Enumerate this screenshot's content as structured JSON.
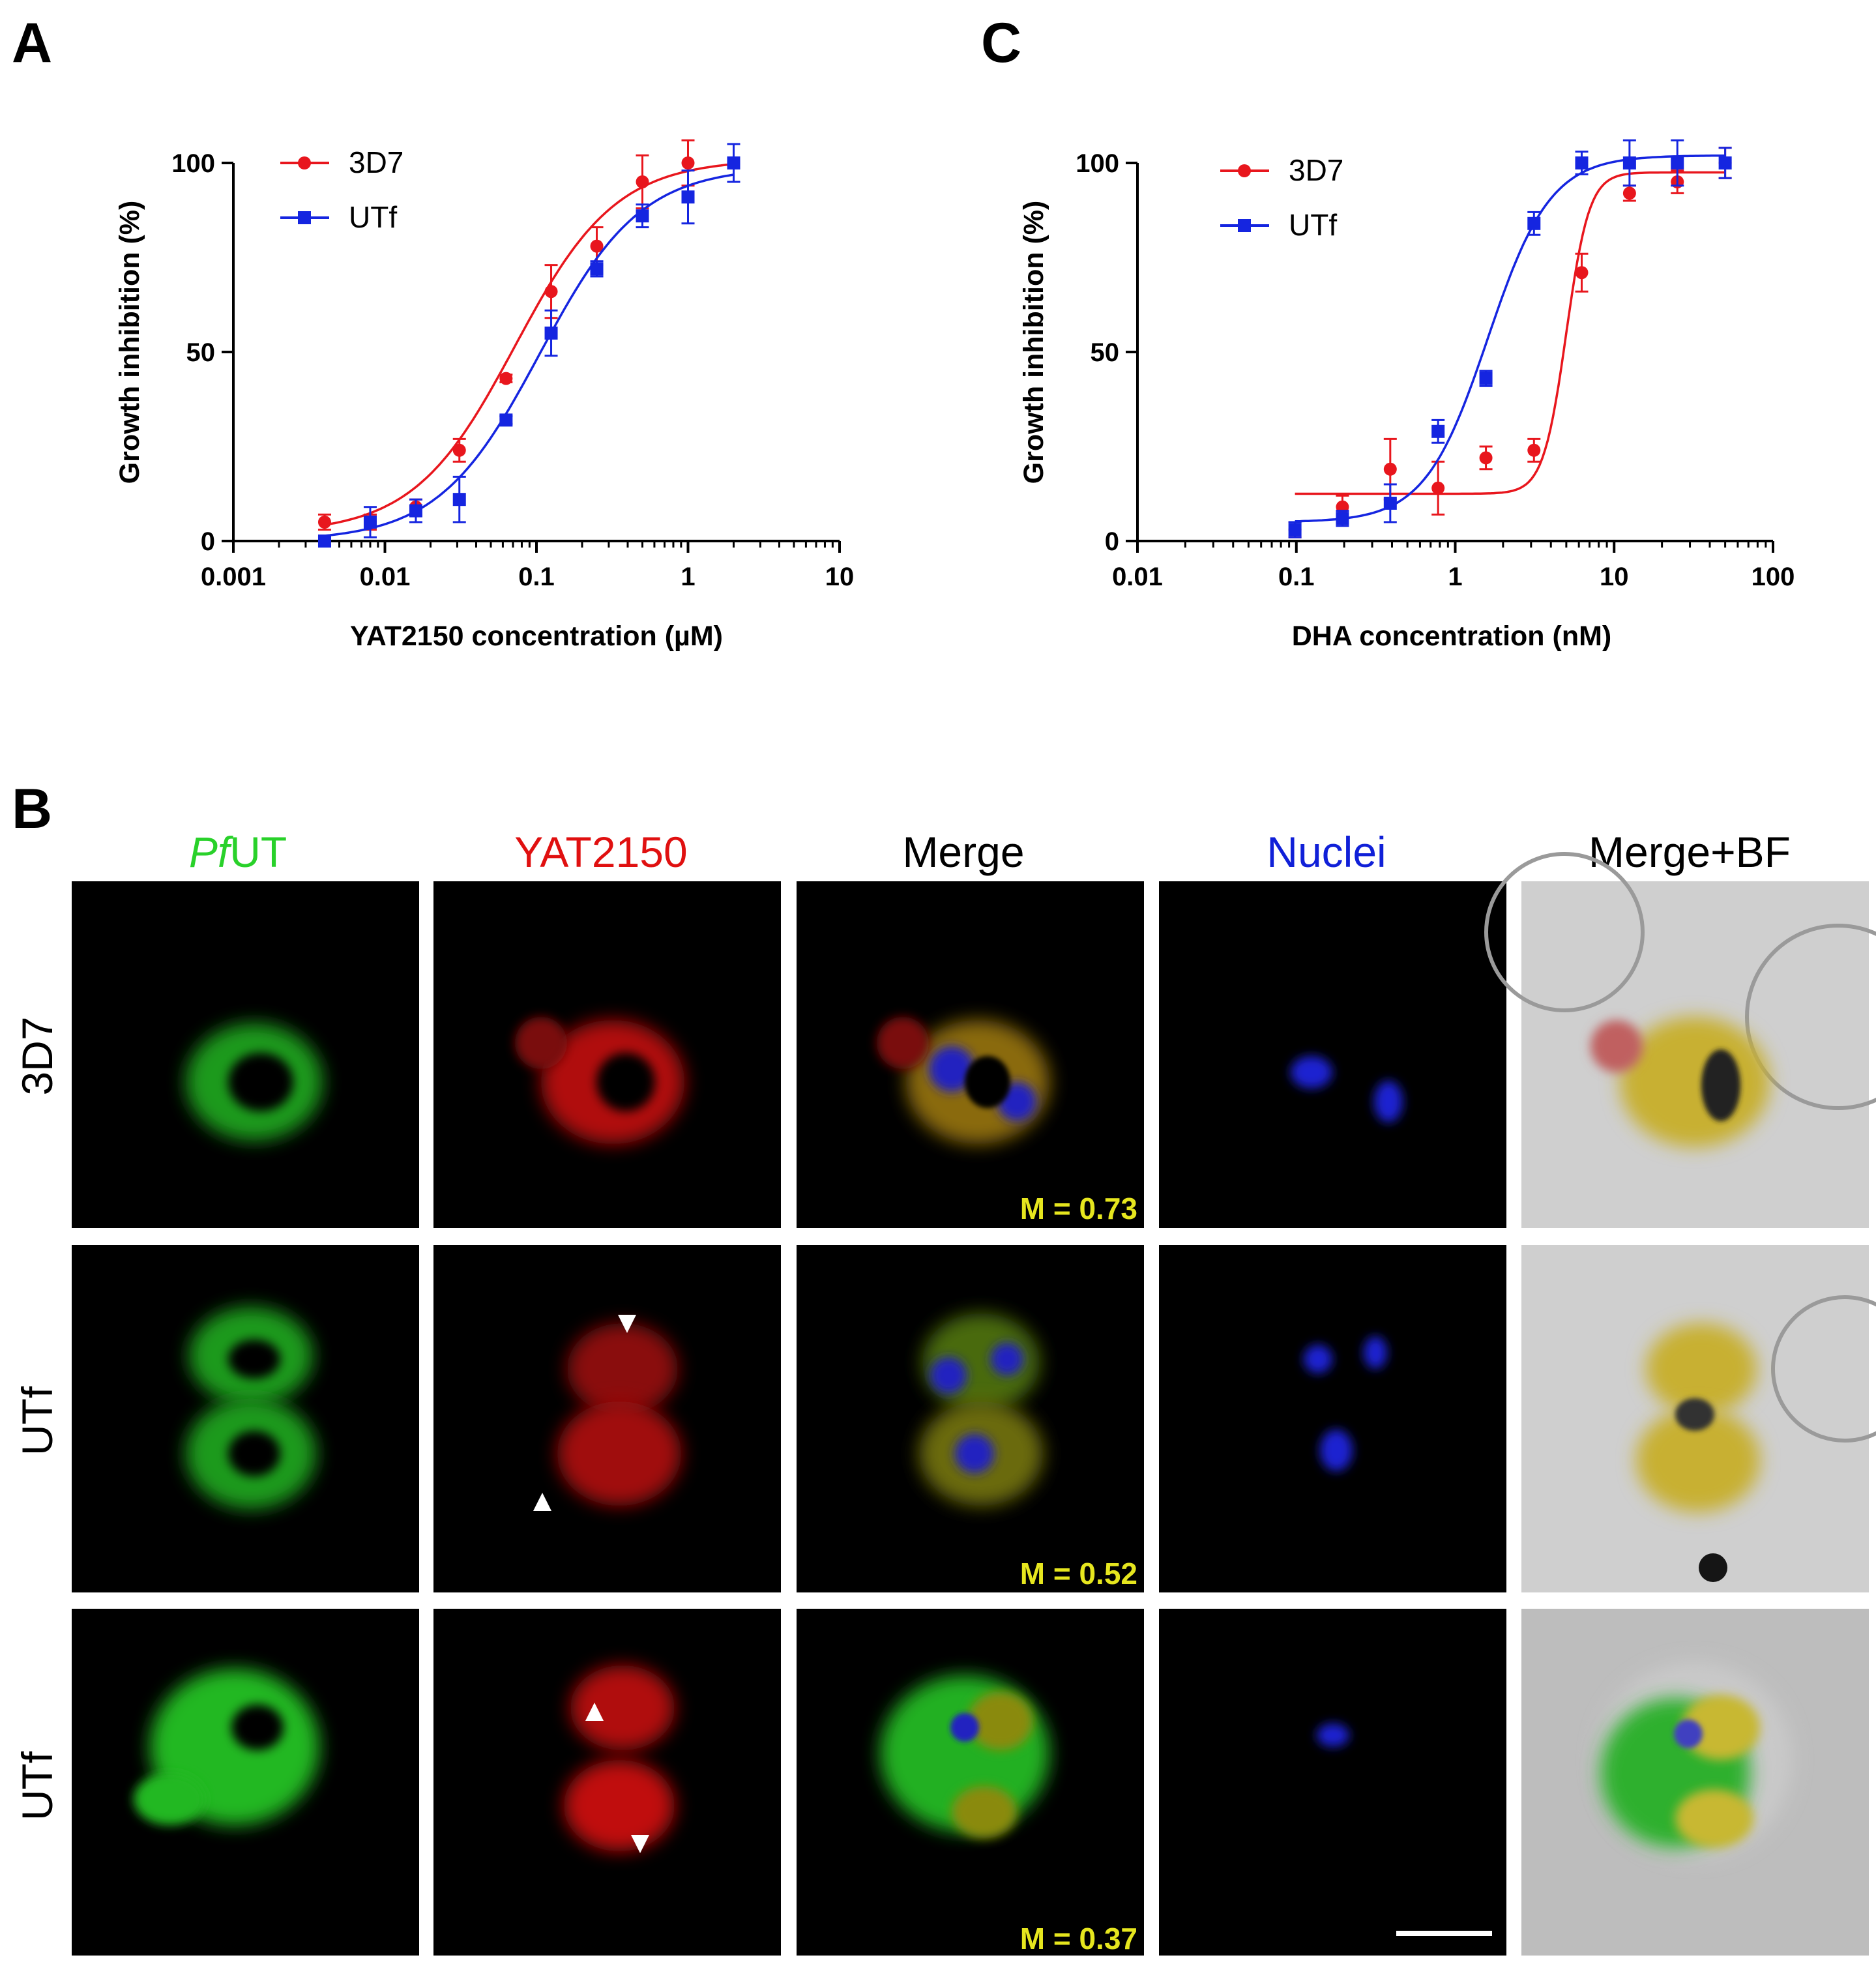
{
  "panel_labels": {
    "a": "A",
    "b": "B",
    "c": "C"
  },
  "colors": {
    "s3d7": "#e8161d",
    "utf": "#1525e0",
    "green": "#29d12a",
    "red": "#e01010",
    "blue": "#1020d8",
    "yellow": "#e6e61e"
  },
  "chart_data": [
    {
      "type": "scatter",
      "panel": "A",
      "xlabel": "YAT2150 concentration (µM)",
      "ylabel": "Growth inhibition (%)",
      "xscale": "log",
      "xlim": [
        0.001,
        10
      ],
      "ylim": [
        0,
        100
      ],
      "xticks": [
        0.001,
        0.01,
        0.1,
        1,
        10
      ],
      "xtick_labels": [
        "0.001",
        "0.01",
        "0.1",
        "1",
        "10"
      ],
      "yticks": [
        0,
        50,
        100
      ],
      "ytick_labels": [
        "0",
        "50",
        "100"
      ],
      "legend_position": "top-left",
      "series": [
        {
          "name": "3D7",
          "color": "#e8161d",
          "marker": "circle",
          "x": [
            0.004,
            0.008,
            0.016,
            0.031,
            0.063,
            0.125,
            0.25,
            0.5,
            1,
            2
          ],
          "y": [
            5,
            5,
            9,
            24,
            43,
            66,
            78,
            95,
            100,
            100
          ],
          "err": [
            2,
            2,
            2,
            3,
            1,
            7,
            5,
            7,
            6,
            5
          ],
          "fit": {
            "bottom": 2,
            "top": 101,
            "ec50": 0.072,
            "hill": 1.3
          }
        },
        {
          "name": "UTf",
          "color": "#1525e0",
          "marker": "square",
          "x": [
            0.004,
            0.008,
            0.016,
            0.031,
            0.063,
            0.125,
            0.25,
            0.5,
            1,
            2
          ],
          "y": [
            0,
            5,
            8,
            11,
            32,
            55,
            72,
            86,
            91,
            100
          ],
          "err": [
            1,
            4,
            3,
            6,
            1,
            6,
            2,
            3,
            7,
            5
          ],
          "fit": {
            "bottom": 0,
            "top": 99,
            "ec50": 0.105,
            "hill": 1.3
          }
        }
      ]
    },
    {
      "type": "scatter",
      "panel": "C",
      "xlabel": "DHA concentration (nM)",
      "ylabel": "Growth inhibition (%)",
      "xscale": "log",
      "xlim": [
        0.01,
        100
      ],
      "ylim": [
        0,
        100
      ],
      "xticks": [
        0.01,
        0.1,
        1,
        10,
        100
      ],
      "xtick_labels": [
        "0.01",
        "0.1",
        "1",
        "10",
        "100"
      ],
      "yticks": [
        0,
        50,
        100
      ],
      "ytick_labels": [
        "0",
        "50",
        "100"
      ],
      "legend_position": "top-left",
      "series": [
        {
          "name": "3D7",
          "color": "#e8161d",
          "marker": "circle",
          "x": [
            0.098,
            0.195,
            0.39,
            0.78,
            1.56,
            3.13,
            6.25,
            12.5,
            25,
            50
          ],
          "y": [
            3,
            9,
            19,
            14,
            22,
            24,
            71,
            92,
            95,
            100
          ],
          "err": [
            2,
            3,
            8,
            7,
            3,
            3,
            5,
            2,
            3,
            4
          ],
          "fit": {
            "bottom": 12.5,
            "top": 97.5,
            "ec50": 5.0,
            "hill": 6.0
          }
        },
        {
          "name": "UTf",
          "color": "#1525e0",
          "marker": "square",
          "x": [
            0.098,
            0.195,
            0.39,
            0.78,
            1.56,
            3.13,
            6.25,
            12.5,
            25,
            50
          ],
          "y": [
            3,
            6,
            10,
            29,
            43,
            84,
            100,
            100,
            100,
            100
          ],
          "err": [
            2,
            2,
            5,
            3,
            2,
            3,
            3,
            6,
            6,
            4
          ],
          "fit": {
            "bottom": 5,
            "top": 102,
            "ec50": 1.6,
            "hill": 2.2
          }
        }
      ]
    }
  ],
  "micrograph": {
    "columns": [
      {
        "prefix": "Pf",
        "label": "UT",
        "color": "#29d12a"
      },
      {
        "prefix": "",
        "label": "YAT2150",
        "color": "#e01010"
      },
      {
        "prefix": "",
        "label": "Merge",
        "color": "#000000"
      },
      {
        "prefix": "",
        "label": "Nuclei",
        "color": "#1020d8"
      },
      {
        "prefix": "",
        "label": "Merge+BF",
        "color": "#000000"
      }
    ],
    "rows": [
      {
        "label": "3D7",
        "manders": "M = 0.73"
      },
      {
        "label": "UTf",
        "manders": "M = 0.52"
      },
      {
        "label": "UTf",
        "manders": "M = 0.37"
      }
    ]
  }
}
